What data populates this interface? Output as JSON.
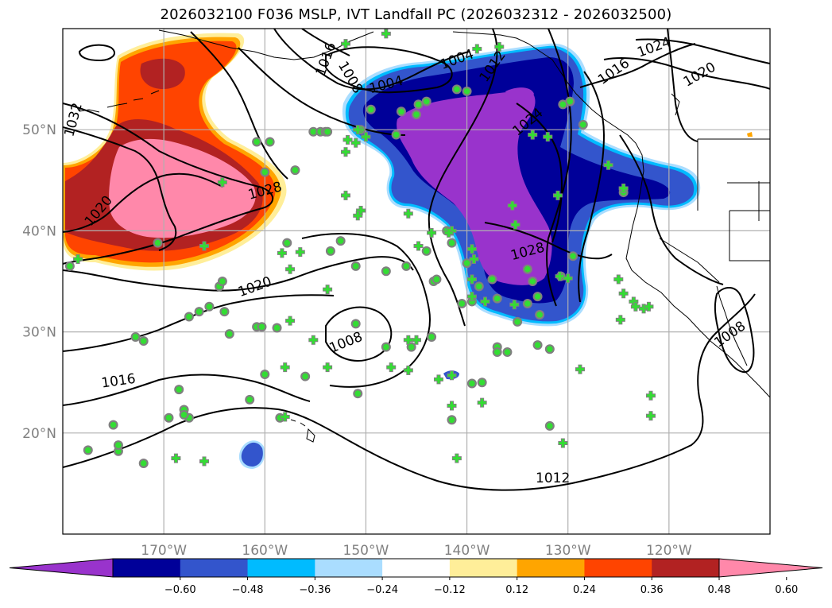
{
  "title": "2026032100 F036 MSLP, IVT Landfall PC (2026032312 - 2026032500)",
  "map": {
    "projection": "PlateCarree",
    "lon_range": [
      -180,
      -110
    ],
    "lat_range": [
      10,
      60
    ],
    "grid": true,
    "lon_ticks": [
      {
        "lon": -170,
        "label": "170°W"
      },
      {
        "lon": -160,
        "label": "160°W"
      },
      {
        "lon": -150,
        "label": "150°W"
      },
      {
        "lon": -140,
        "label": "140°W"
      },
      {
        "lon": -130,
        "label": "130°W"
      },
      {
        "lon": -120,
        "label": "120°W"
      }
    ],
    "lat_ticks": [
      {
        "lat": 20,
        "label": "20°N"
      },
      {
        "lat": 30,
        "label": "30°N"
      },
      {
        "lat": 40,
        "label": "40°N"
      },
      {
        "lat": 50,
        "label": "50°N"
      }
    ],
    "isobar_labels": [
      {
        "text": "1032",
        "lon": -179.0,
        "lat": 51.0,
        "rot": -75
      },
      {
        "text": "1028",
        "lon": -160.0,
        "lat": 44.0,
        "rot": -15
      },
      {
        "text": "1020",
        "lon": -176.5,
        "lat": 42.0,
        "rot": -50
      },
      {
        "text": "1020",
        "lon": -161.0,
        "lat": 34.5,
        "rot": -20
      },
      {
        "text": "1016",
        "lon": -154.0,
        "lat": 57.0,
        "rot": -70
      },
      {
        "text": "1016",
        "lon": -174.5,
        "lat": 25.2,
        "rot": -8
      },
      {
        "text": "1008",
        "lon": -151.5,
        "lat": 55.2,
        "rot": 60
      },
      {
        "text": "1008",
        "lon": -152.0,
        "lat": 29.0,
        "rot": -22
      },
      {
        "text": "1004",
        "lon": -148.0,
        "lat": 54.5,
        "rot": -15
      },
      {
        "text": "1004",
        "lon": -141.0,
        "lat": 57.0,
        "rot": -20
      },
      {
        "text": "1012",
        "lon": -137.5,
        "lat": 56.3,
        "rot": -55
      },
      {
        "text": "1024",
        "lon": -134.0,
        "lat": 50.8,
        "rot": -40
      },
      {
        "text": "1028",
        "lon": -134.0,
        "lat": 38.0,
        "rot": -15
      },
      {
        "text": "1024",
        "lon": -121.5,
        "lat": 58.2,
        "rot": -20
      },
      {
        "text": "1016",
        "lon": -125.5,
        "lat": 55.8,
        "rot": -35
      },
      {
        "text": "1020",
        "lon": -117.0,
        "lat": 55.5,
        "rot": -30
      },
      {
        "text": "1012",
        "lon": -131.5,
        "lat": 15.6,
        "rot": 0
      },
      {
        "text": "1008",
        "lon": -114.0,
        "lat": 29.8,
        "rot": -35
      }
    ]
  },
  "colorbar": {
    "ticks": [
      "−0.60",
      "−0.48",
      "−0.36",
      "−0.24",
      "−0.12",
      "0.12",
      "0.24",
      "0.36",
      "0.48",
      "0.60"
    ],
    "colors": [
      "#9933cc",
      "#000099",
      "#3355cc",
      "#00bbff",
      "#aaddff",
      "#ffffff",
      "#ffee99",
      "#ffa500",
      "#ff4400",
      "#b22222",
      "#ff88aa"
    ],
    "extend": "both"
  },
  "colors": {
    "grid": "#b0b0b0",
    "coast": "#000000",
    "marker_fill": "#33dd33",
    "marker_edge": "#808080",
    "dot_fill": "#00ee00"
  },
  "icons": {
    "circle_marker": "circle-marker",
    "plus_marker": "plus-marker"
  },
  "markers": {
    "circles": [
      [
        -179.3,
        36.5
      ],
      [
        -167.5,
        31.5
      ],
      [
        -166.5,
        32
      ],
      [
        -165.5,
        32.5
      ],
      [
        -164.5,
        34.5
      ],
      [
        -164.2,
        35
      ],
      [
        -164,
        32
      ],
      [
        -163.5,
        29.8
      ],
      [
        -161.5,
        23.3
      ],
      [
        -160.8,
        30.5
      ],
      [
        -160.3,
        30.5
      ],
      [
        -160,
        25.8
      ],
      [
        -158.8,
        30.4
      ],
      [
        -157.8,
        38.8
      ],
      [
        -156,
        25.6
      ],
      [
        -155.2,
        49.8
      ],
      [
        -154.5,
        49.8
      ],
      [
        -154,
        49.8
      ],
      [
        -152.5,
        39
      ],
      [
        -153.5,
        38
      ],
      [
        -151,
        36.5
      ],
      [
        -151,
        30.8
      ],
      [
        -150.8,
        23.9
      ],
      [
        -148,
        36
      ],
      [
        -148,
        28.5
      ],
      [
        -146,
        36.5
      ],
      [
        -145.5,
        28.5
      ],
      [
        -144,
        38
      ],
      [
        -143.3,
        35
      ],
      [
        -143,
        35.2
      ],
      [
        -143.5,
        29.5
      ],
      [
        -141.5,
        21.3
      ],
      [
        -140.5,
        32.8
      ],
      [
        -139.5,
        33
      ],
      [
        -139.5,
        24.9
      ],
      [
        -138.5,
        25
      ],
      [
        -137,
        28.5
      ],
      [
        -137,
        28
      ],
      [
        -136,
        28
      ],
      [
        -135,
        31
      ],
      [
        -134,
        36.2
      ],
      [
        -133.5,
        35
      ],
      [
        -133,
        33.5
      ],
      [
        -132.8,
        31.7
      ],
      [
        -130.7,
        35.5
      ],
      [
        -129.5,
        37.5
      ],
      [
        -141.5,
        38.8
      ],
      [
        -142,
        40
      ],
      [
        -140,
        36.8
      ],
      [
        -138.8,
        34.5
      ],
      [
        -137.5,
        35.2
      ],
      [
        -137,
        33.3
      ],
      [
        -134,
        32.8
      ],
      [
        -133,
        28.7
      ],
      [
        -131.8,
        28.3
      ],
      [
        -170.6,
        38.8
      ],
      [
        -169.5,
        21.5
      ],
      [
        -168,
        22.3
      ],
      [
        -168.5,
        24.3
      ],
      [
        -167.5,
        21.5
      ],
      [
        -168,
        21.8
      ],
      [
        -172.8,
        29.5
      ],
      [
        -172,
        29.1
      ],
      [
        -175,
        20.8
      ],
      [
        -177.5,
        18.3
      ],
      [
        -174.5,
        18.2
      ],
      [
        -174.5,
        18.8
      ],
      [
        -172,
        17
      ],
      [
        -159.5,
        48.8
      ],
      [
        -160.8,
        48.8
      ],
      [
        -160,
        45.8
      ],
      [
        -158.5,
        21.5
      ],
      [
        -157,
        46
      ],
      [
        -150.5,
        50
      ],
      [
        -149.5,
        52
      ],
      [
        -147,
        49.5
      ],
      [
        -145,
        51.5
      ],
      [
        -146.5,
        51.8
      ],
      [
        -144,
        52.8
      ],
      [
        -144.8,
        52.5
      ],
      [
        -141,
        54
      ],
      [
        -140,
        53.8
      ],
      [
        -131.8,
        20.7
      ],
      [
        -124.5,
        43.8
      ],
      [
        -129.8,
        52.8
      ],
      [
        -128.5,
        50.5
      ],
      [
        -130.5,
        52.5
      ],
      [
        -153.8,
        49.8
      ]
    ],
    "pluses": [
      [
        -178.5,
        37.2
      ],
      [
        -166,
        38.5
      ],
      [
        -164.2,
        44.8
      ],
      [
        -152,
        58.5
      ],
      [
        -148,
        59.5
      ],
      [
        -139,
        58
      ],
      [
        -133.5,
        49.5
      ],
      [
        -136.8,
        58.2
      ],
      [
        -131,
        43.5
      ],
      [
        -126,
        46.5
      ],
      [
        -124.5,
        44.2
      ],
      [
        -125,
        35.2
      ],
      [
        -124.5,
        33.8
      ],
      [
        -124.8,
        31.2
      ],
      [
        -123.5,
        33
      ],
      [
        -123.3,
        32.5
      ],
      [
        -122.5,
        32.3
      ],
      [
        -122,
        32.5
      ],
      [
        -121.8,
        23.7
      ],
      [
        -121.8,
        21.7
      ],
      [
        -128.8,
        26.3
      ],
      [
        -130.5,
        19
      ],
      [
        -141,
        17.5
      ],
      [
        -141.5,
        22.7
      ],
      [
        -138.5,
        23
      ],
      [
        -142.8,
        25.3
      ],
      [
        -141.5,
        25.7
      ],
      [
        -145,
        29.2
      ],
      [
        -145.8,
        29.2
      ],
      [
        -147.5,
        26.5
      ],
      [
        -145.8,
        26.2
      ],
      [
        -153.8,
        26.5
      ],
      [
        -153.8,
        34.2
      ],
      [
        -152,
        43.5
      ],
      [
        -152,
        47.8
      ],
      [
        -150,
        49.3
      ],
      [
        -151,
        48.7
      ],
      [
        -151.8,
        49
      ],
      [
        -150.8,
        50
      ],
      [
        -145.8,
        41.7
      ],
      [
        -143.5,
        39.8
      ],
      [
        -144.8,
        38.5
      ],
      [
        -141.5,
        40
      ],
      [
        -139.5,
        38.2
      ],
      [
        -139.5,
        35.2
      ],
      [
        -139.5,
        33.5
      ],
      [
        -138.2,
        33
      ],
      [
        -135.3,
        32.7
      ],
      [
        -135.2,
        40.6
      ],
      [
        -135.5,
        42.5
      ],
      [
        -132,
        49.3
      ],
      [
        -158.3,
        37.8
      ],
      [
        -156.5,
        37.9
      ],
      [
        -157.5,
        36.2
      ],
      [
        -157.5,
        31.1
      ],
      [
        -155.2,
        29.2
      ],
      [
        -158,
        26.5
      ],
      [
        -158,
        21.6
      ],
      [
        -150.5,
        42
      ],
      [
        -150.8,
        41.5
      ],
      [
        -168.8,
        17.5
      ],
      [
        -166,
        17.2
      ],
      [
        -141.8,
        39.8
      ],
      [
        -139.3,
        37.2
      ],
      [
        -130.8,
        35.5
      ],
      [
        -130,
        35.3
      ]
    ]
  }
}
